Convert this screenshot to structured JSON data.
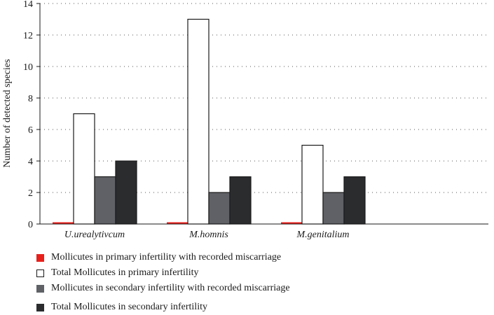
{
  "chart_data": {
    "type": "bar",
    "title": "",
    "xlabel": "",
    "ylabel": "Number of detected species",
    "ylim": [
      0,
      14
    ],
    "yticks": [
      0,
      2,
      4,
      6,
      8,
      10,
      12,
      14
    ],
    "grid": true,
    "categories": [
      "U.urealytivcum",
      "M.homnis",
      "M.genitalium"
    ],
    "series": [
      {
        "name": "Mollicutes in primary infertility with recorded miscarriage",
        "values": [
          0,
          0,
          0
        ],
        "color": "#e8201c"
      },
      {
        "name": "Total Mollicutes in primary infertility",
        "values": [
          7,
          13,
          5
        ],
        "color": "#ffffff"
      },
      {
        "name": "Mollicutes in secondary infertility with recorded miscarriage",
        "values": [
          3,
          2,
          2
        ],
        "color": "#5f6166"
      },
      {
        "name": "Total Mollicutes in secondary infertility",
        "values": [
          4,
          3,
          3
        ],
        "color": "#2b2c2e"
      }
    ],
    "legend_position": "bottom"
  }
}
